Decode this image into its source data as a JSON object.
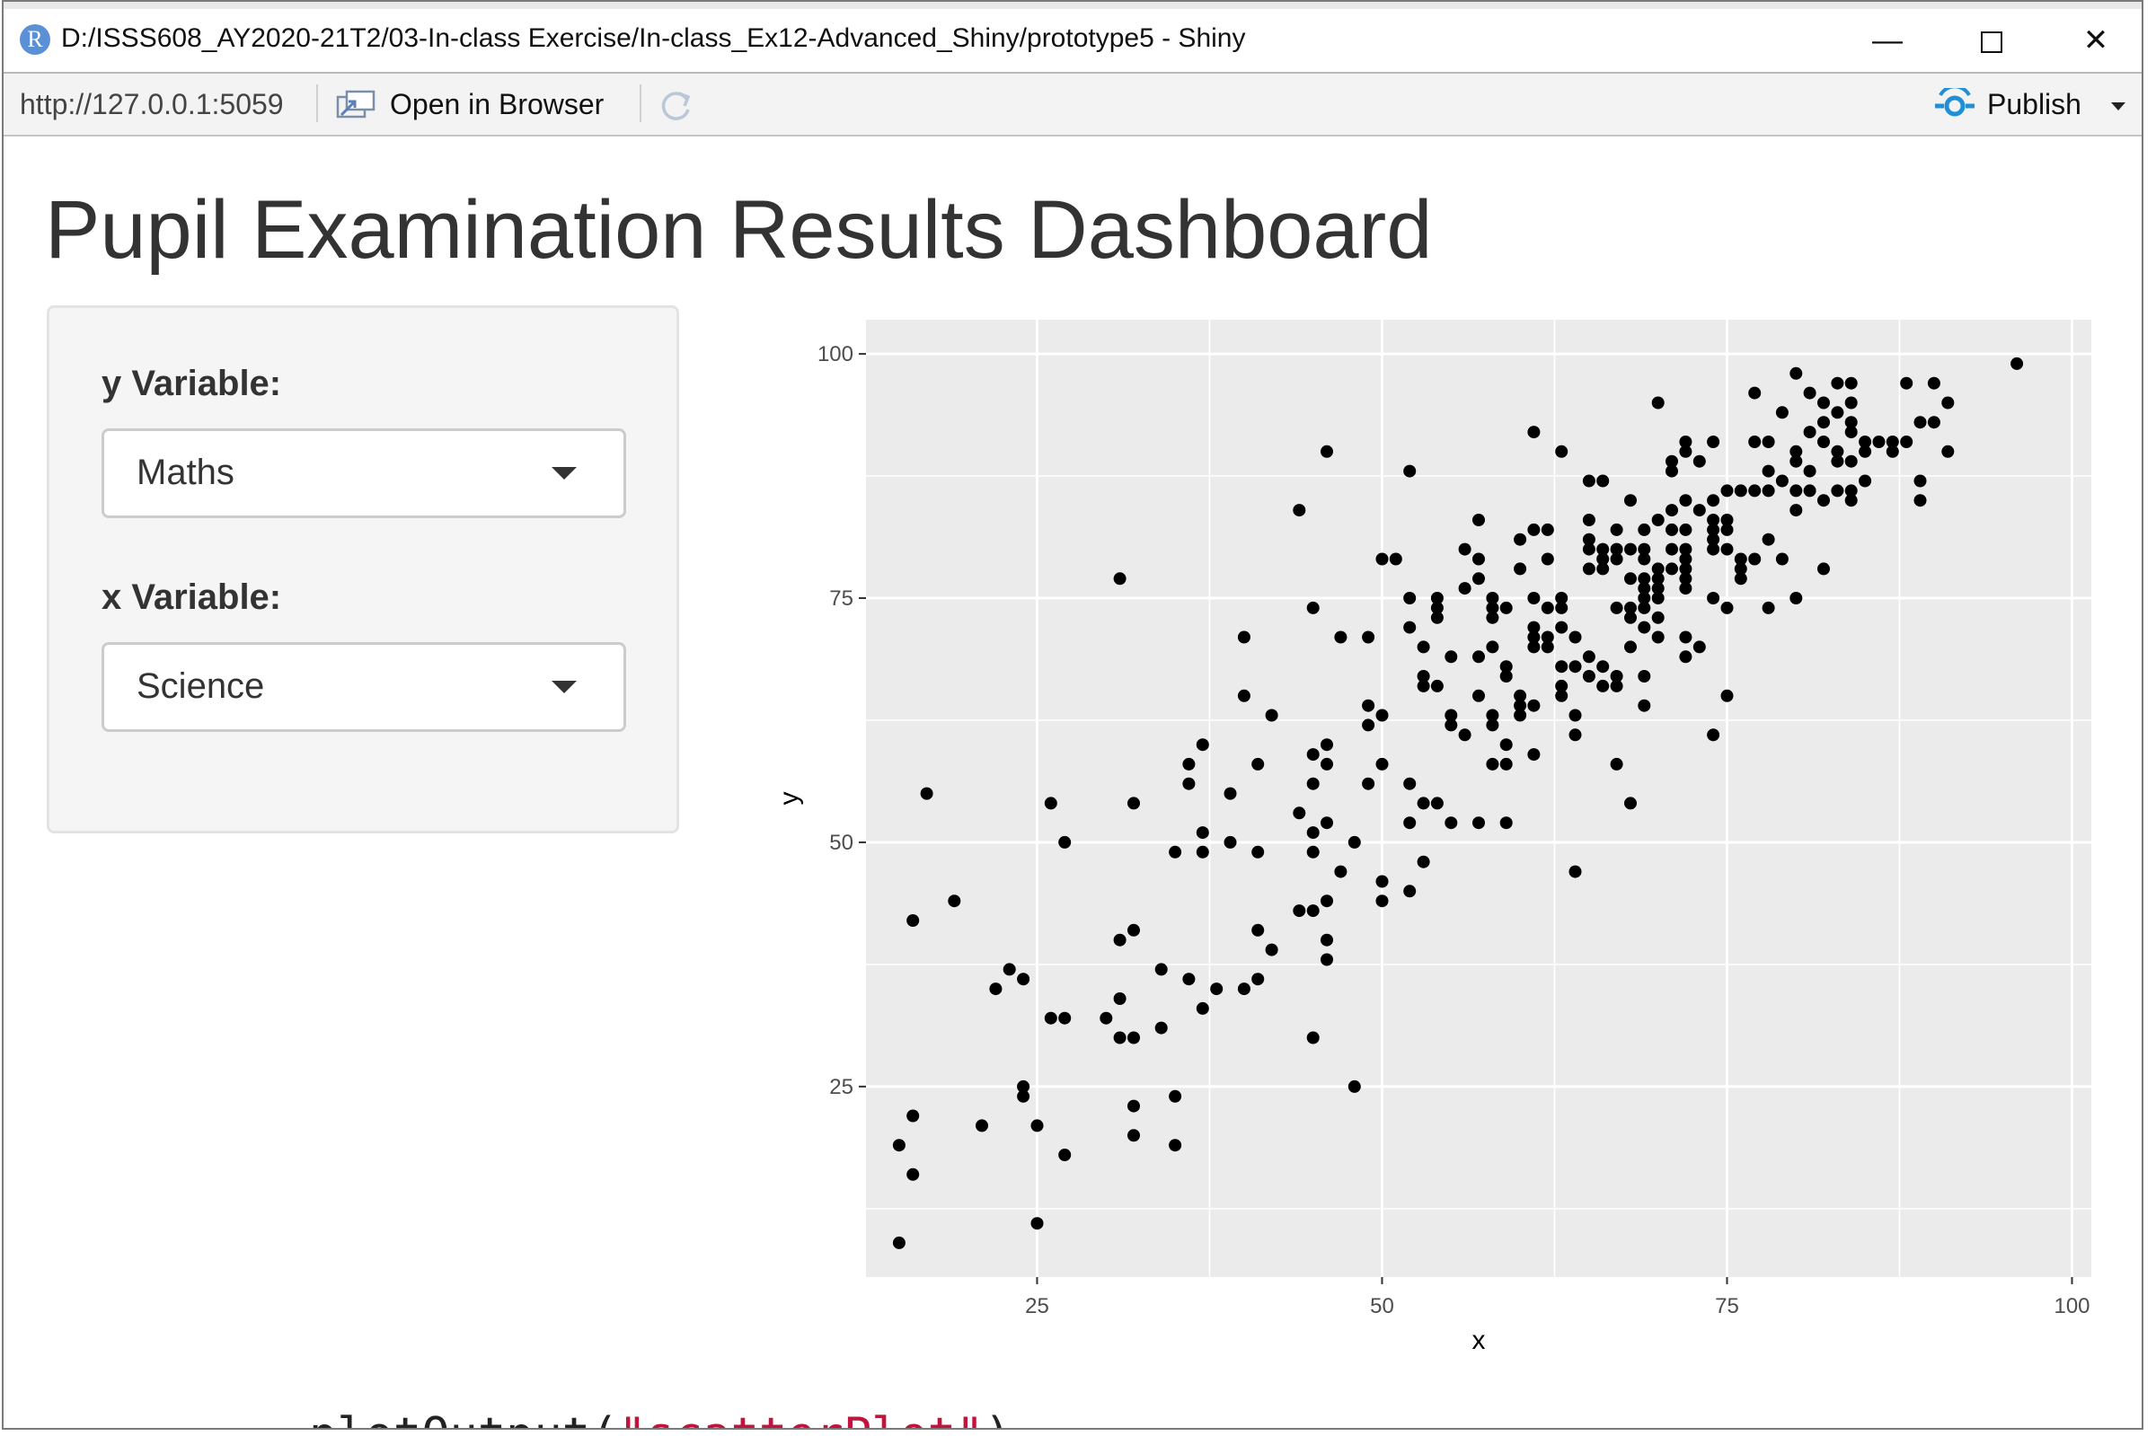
{
  "window": {
    "title": "D:/ISSS608_AY2020-21T2/03-In-class Exercise/In-class_Ex12-Advanced_Shiny/prototype5 - Shiny",
    "app_icon": "r-logo-icon",
    "minimize_icon": "minimize-icon",
    "maximize_icon": "maximize-icon",
    "close_icon": "close-icon"
  },
  "toolbar": {
    "url": "http://127.0.0.1:5059",
    "open_in_browser_label": "Open in Browser",
    "open_icon": "open-in-browser-icon",
    "refresh_icon": "refresh-icon",
    "publish_label": "Publish",
    "publish_icon": "publish-icon",
    "publish_caret": "chevron-down-icon"
  },
  "page": {
    "title": "Pupil Examination Results Dashboard"
  },
  "sidebar": {
    "y_variable": {
      "label": "y Variable:",
      "selected": "Maths"
    },
    "x_variable": {
      "label": "x Variable:",
      "selected": "Science"
    }
  },
  "background_code": {
    "prefix": "plotOutput(",
    "string": "\"scatterPlot\"",
    "suffix": ")"
  },
  "colors": {
    "panel_bg": "#ebebeb",
    "grid": "#ffffff",
    "point": "#000000",
    "accent_publish": "#1f8fd6"
  },
  "chart_data": {
    "type": "scatter",
    "title": "",
    "xlabel": "x",
    "ylabel": "y",
    "xlim": [
      12.6,
      101.4
    ],
    "ylim": [
      5.5,
      103.5
    ],
    "xticks": [
      25,
      50,
      75,
      100
    ],
    "yticks": [
      25,
      50,
      75,
      100
    ],
    "grid": true,
    "legend": "none",
    "series": [
      {
        "points": [
          [
            15,
            9
          ],
          [
            15,
            19
          ],
          [
            16,
            16
          ],
          [
            16,
            22
          ],
          [
            16,
            42
          ],
          [
            17,
            55
          ],
          [
            19,
            44
          ],
          [
            21,
            21
          ],
          [
            22,
            35
          ],
          [
            23,
            37
          ],
          [
            24,
            24
          ],
          [
            24,
            25
          ],
          [
            24,
            36
          ],
          [
            25,
            11
          ],
          [
            25,
            21
          ],
          [
            26,
            32
          ],
          [
            26,
            54
          ],
          [
            27,
            18
          ],
          [
            27,
            32
          ],
          [
            27,
            50
          ],
          [
            30,
            32
          ],
          [
            31,
            30
          ],
          [
            31,
            34
          ],
          [
            31,
            40
          ],
          [
            31,
            77
          ],
          [
            32,
            20
          ],
          [
            32,
            23
          ],
          [
            32,
            30
          ],
          [
            32,
            41
          ],
          [
            32,
            54
          ],
          [
            34,
            31
          ],
          [
            34,
            37
          ],
          [
            35,
            19
          ],
          [
            35,
            24
          ],
          [
            35,
            49
          ],
          [
            36,
            36
          ],
          [
            36,
            56
          ],
          [
            36,
            58
          ],
          [
            37,
            33
          ],
          [
            37,
            49
          ],
          [
            37,
            51
          ],
          [
            37,
            60
          ],
          [
            38,
            35
          ],
          [
            39,
            50
          ],
          [
            39,
            55
          ],
          [
            40,
            35
          ],
          [
            40,
            65
          ],
          [
            40,
            71
          ],
          [
            41,
            36
          ],
          [
            41,
            41
          ],
          [
            41,
            49
          ],
          [
            41,
            58
          ],
          [
            42,
            39
          ],
          [
            42,
            63
          ],
          [
            44,
            43
          ],
          [
            44,
            53
          ],
          [
            44,
            84
          ],
          [
            45,
            30
          ],
          [
            45,
            43
          ],
          [
            45,
            49
          ],
          [
            45,
            51
          ],
          [
            45,
            56
          ],
          [
            45,
            59
          ],
          [
            45,
            74
          ],
          [
            46,
            38
          ],
          [
            46,
            40
          ],
          [
            46,
            44
          ],
          [
            46,
            52
          ],
          [
            46,
            58
          ],
          [
            46,
            60
          ],
          [
            46,
            90
          ],
          [
            47,
            47
          ],
          [
            47,
            71
          ],
          [
            48,
            25
          ],
          [
            48,
            50
          ],
          [
            49,
            56
          ],
          [
            49,
            62
          ],
          [
            49,
            64
          ],
          [
            49,
            71
          ],
          [
            50,
            44
          ],
          [
            50,
            46
          ],
          [
            50,
            58
          ],
          [
            50,
            63
          ],
          [
            50,
            79
          ],
          [
            51,
            79
          ],
          [
            52,
            45
          ],
          [
            52,
            52
          ],
          [
            52,
            56
          ],
          [
            52,
            72
          ],
          [
            52,
            75
          ],
          [
            52,
            88
          ],
          [
            53,
            48
          ],
          [
            53,
            54
          ],
          [
            53,
            66
          ],
          [
            53,
            67
          ],
          [
            53,
            70
          ],
          [
            54,
            54
          ],
          [
            54,
            66
          ],
          [
            54,
            73
          ],
          [
            54,
            74
          ],
          [
            54,
            75
          ],
          [
            55,
            52
          ],
          [
            55,
            62
          ],
          [
            55,
            63
          ],
          [
            55,
            69
          ],
          [
            56,
            61
          ],
          [
            56,
            76
          ],
          [
            56,
            80
          ],
          [
            57,
            52
          ],
          [
            57,
            65
          ],
          [
            57,
            69
          ],
          [
            57,
            77
          ],
          [
            57,
            79
          ],
          [
            57,
            83
          ],
          [
            58,
            58
          ],
          [
            58,
            62
          ],
          [
            58,
            63
          ],
          [
            58,
            70
          ],
          [
            58,
            73
          ],
          [
            58,
            74
          ],
          [
            58,
            75
          ],
          [
            59,
            52
          ],
          [
            59,
            58
          ],
          [
            59,
            60
          ],
          [
            59,
            67
          ],
          [
            59,
            68
          ],
          [
            59,
            74
          ],
          [
            60,
            63
          ],
          [
            60,
            64
          ],
          [
            60,
            65
          ],
          [
            60,
            78
          ],
          [
            60,
            81
          ],
          [
            61,
            59
          ],
          [
            61,
            64
          ],
          [
            61,
            70
          ],
          [
            61,
            71
          ],
          [
            61,
            72
          ],
          [
            61,
            75
          ],
          [
            61,
            82
          ],
          [
            61,
            92
          ],
          [
            62,
            70
          ],
          [
            62,
            71
          ],
          [
            62,
            74
          ],
          [
            62,
            79
          ],
          [
            62,
            82
          ],
          [
            63,
            65
          ],
          [
            63,
            66
          ],
          [
            63,
            68
          ],
          [
            63,
            72
          ],
          [
            63,
            74
          ],
          [
            63,
            75
          ],
          [
            63,
            90
          ],
          [
            64,
            47
          ],
          [
            64,
            61
          ],
          [
            64,
            63
          ],
          [
            64,
            68
          ],
          [
            64,
            71
          ],
          [
            65,
            67
          ],
          [
            65,
            69
          ],
          [
            65,
            78
          ],
          [
            65,
            80
          ],
          [
            65,
            81
          ],
          [
            65,
            83
          ],
          [
            65,
            87
          ],
          [
            66,
            66
          ],
          [
            66,
            68
          ],
          [
            66,
            78
          ],
          [
            66,
            79
          ],
          [
            66,
            80
          ],
          [
            66,
            87
          ],
          [
            67,
            58
          ],
          [
            67,
            66
          ],
          [
            67,
            67
          ],
          [
            67,
            74
          ],
          [
            67,
            79
          ],
          [
            67,
            80
          ],
          [
            67,
            82
          ],
          [
            68,
            54
          ],
          [
            68,
            70
          ],
          [
            68,
            73
          ],
          [
            68,
            74
          ],
          [
            68,
            77
          ],
          [
            68,
            80
          ],
          [
            68,
            85
          ],
          [
            69,
            64
          ],
          [
            69,
            67
          ],
          [
            69,
            72
          ],
          [
            69,
            74
          ],
          [
            69,
            75
          ],
          [
            69,
            76
          ],
          [
            69,
            77
          ],
          [
            69,
            79
          ],
          [
            69,
            80
          ],
          [
            69,
            82
          ],
          [
            70,
            71
          ],
          [
            70,
            73
          ],
          [
            70,
            75
          ],
          [
            70,
            76
          ],
          [
            70,
            77
          ],
          [
            70,
            78
          ],
          [
            70,
            83
          ],
          [
            70,
            95
          ],
          [
            71,
            78
          ],
          [
            71,
            80
          ],
          [
            71,
            82
          ],
          [
            71,
            84
          ],
          [
            71,
            88
          ],
          [
            71,
            89
          ],
          [
            72,
            69
          ],
          [
            72,
            71
          ],
          [
            72,
            76
          ],
          [
            72,
            77
          ],
          [
            72,
            78
          ],
          [
            72,
            79
          ],
          [
            72,
            80
          ],
          [
            72,
            82
          ],
          [
            72,
            85
          ],
          [
            72,
            90
          ],
          [
            72,
            91
          ],
          [
            73,
            70
          ],
          [
            73,
            84
          ],
          [
            73,
            89
          ],
          [
            74,
            61
          ],
          [
            74,
            75
          ],
          [
            74,
            80
          ],
          [
            74,
            81
          ],
          [
            74,
            82
          ],
          [
            74,
            83
          ],
          [
            74,
            85
          ],
          [
            74,
            91
          ],
          [
            75,
            65
          ],
          [
            75,
            74
          ],
          [
            75,
            80
          ],
          [
            75,
            82
          ],
          [
            75,
            83
          ],
          [
            75,
            86
          ],
          [
            76,
            77
          ],
          [
            76,
            78
          ],
          [
            76,
            79
          ],
          [
            76,
            86
          ],
          [
            77,
            79
          ],
          [
            77,
            86
          ],
          [
            77,
            91
          ],
          [
            77,
            96
          ],
          [
            78,
            74
          ],
          [
            78,
            81
          ],
          [
            78,
            86
          ],
          [
            78,
            88
          ],
          [
            78,
            91
          ],
          [
            79,
            79
          ],
          [
            79,
            87
          ],
          [
            79,
            94
          ],
          [
            80,
            75
          ],
          [
            80,
            84
          ],
          [
            80,
            86
          ],
          [
            80,
            89
          ],
          [
            80,
            90
          ],
          [
            80,
            98
          ],
          [
            81,
            86
          ],
          [
            81,
            88
          ],
          [
            81,
            92
          ],
          [
            81,
            96
          ],
          [
            82,
            78
          ],
          [
            82,
            85
          ],
          [
            82,
            91
          ],
          [
            82,
            93
          ],
          [
            82,
            95
          ],
          [
            83,
            86
          ],
          [
            83,
            89
          ],
          [
            83,
            90
          ],
          [
            83,
            94
          ],
          [
            83,
            97
          ],
          [
            84,
            85
          ],
          [
            84,
            86
          ],
          [
            84,
            89
          ],
          [
            84,
            92
          ],
          [
            84,
            93
          ],
          [
            84,
            95
          ],
          [
            84,
            97
          ],
          [
            85,
            87
          ],
          [
            85,
            90
          ],
          [
            85,
            91
          ],
          [
            86,
            91
          ],
          [
            87,
            90
          ],
          [
            87,
            91
          ],
          [
            88,
            91
          ],
          [
            88,
            97
          ],
          [
            89,
            85
          ],
          [
            89,
            87
          ],
          [
            89,
            93
          ],
          [
            90,
            93
          ],
          [
            90,
            97
          ],
          [
            91,
            90
          ],
          [
            91,
            95
          ],
          [
            96,
            99
          ]
        ]
      }
    ]
  }
}
